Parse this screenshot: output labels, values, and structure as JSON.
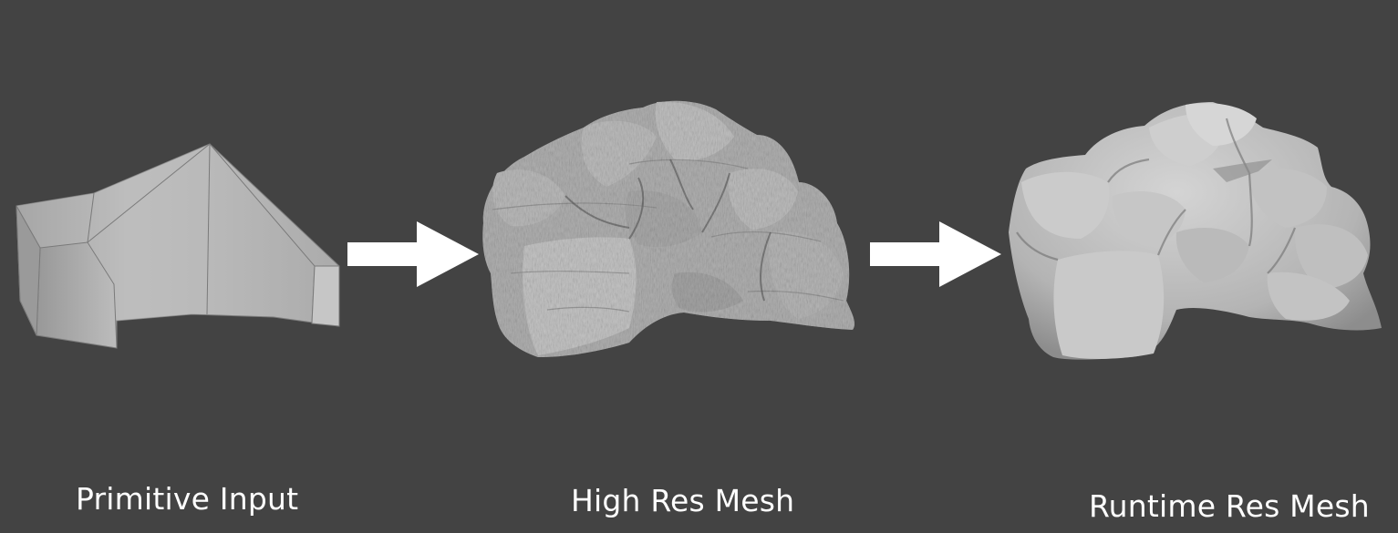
{
  "stages": [
    {
      "label": "Primitive Input",
      "icon": "primitive-mesh-icon"
    },
    {
      "label": "High Res Mesh",
      "icon": "high-res-rock-icon"
    },
    {
      "label": "Runtime Res Mesh",
      "icon": "runtime-rock-icon"
    }
  ],
  "arrows": [
    {
      "icon": "arrow-right-icon"
    },
    {
      "icon": "arrow-right-icon"
    }
  ],
  "colors": {
    "background": "#434343",
    "mesh": "#b2b2b2",
    "arrow": "#ffffff",
    "label": "#ffffff"
  }
}
